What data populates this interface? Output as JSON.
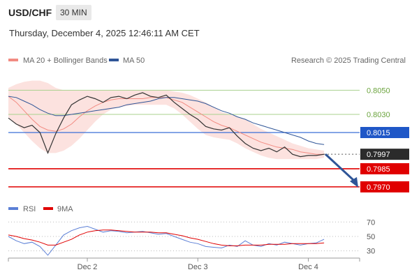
{
  "header": {
    "symbol": "USD/CHF",
    "timeframe": "30 MIN",
    "datetime": "Thursday, December 4, 2025 12:46:11 AM CET"
  },
  "legend": {
    "items": [
      {
        "label": "MA 20 + Bollinger Bands",
        "color": "#f28b82"
      },
      {
        "label": "MA 50",
        "color": "#2f5597"
      }
    ],
    "credit": "Research © 2025 Trading Central"
  },
  "rsi_legend": {
    "items": [
      {
        "label": "RSI",
        "color": "#5b7fd6"
      },
      {
        "label": "9MA",
        "color": "#e00000"
      }
    ]
  },
  "chart_data": [
    {
      "type": "line",
      "panel": "price",
      "x": [
        0,
        2,
        4,
        6,
        8,
        10,
        12,
        14,
        16,
        18,
        20,
        22,
        24,
        26,
        28,
        30,
        32,
        34,
        36,
        38,
        40,
        42,
        44,
        46,
        48,
        50,
        52,
        54,
        56,
        58,
        60,
        62,
        64,
        66,
        68,
        70,
        72,
        74,
        76,
        78,
        80
      ],
      "series": [
        {
          "name": "price",
          "values": [
            0.8027,
            0.8022,
            0.8019,
            0.8021,
            0.8015,
            0.7998,
            0.8014,
            0.8027,
            0.8038,
            0.8042,
            0.8045,
            0.8043,
            0.804,
            0.8044,
            0.8045,
            0.8043,
            0.8046,
            0.8048,
            0.8045,
            0.8044,
            0.8046,
            0.804,
            0.8035,
            0.803,
            0.8026,
            0.802,
            0.8018,
            0.8017,
            0.8019,
            0.8012,
            0.8006,
            0.8002,
            0.8,
            0.8002,
            0.7999,
            0.8003,
            0.7997,
            0.7995,
            0.7996,
            0.7996,
            0.7997
          ]
        },
        {
          "name": "MA 20",
          "values": [
            0.8045,
            0.804,
            0.8033,
            0.8026,
            0.802,
            0.8017,
            0.8016,
            0.8018,
            0.8022,
            0.8028,
            0.8033,
            0.8037,
            0.804,
            0.8042,
            0.8043,
            0.8043,
            0.8043,
            0.8043,
            0.8044,
            0.8044,
            0.8044,
            0.8042,
            0.804,
            0.8036,
            0.8032,
            0.8028,
            0.8024,
            0.8021,
            0.8019,
            0.8016,
            0.8013,
            0.801,
            0.8007,
            0.8005,
            0.8003,
            0.8002,
            0.8001,
            0.7999,
            0.7998,
            0.7997,
            0.7997
          ]
        },
        {
          "name": "MA 50",
          "values": [
            0.8045,
            0.8044,
            0.8041,
            0.8038,
            0.8034,
            0.8031,
            0.8029,
            0.8029,
            0.803,
            0.8031,
            0.8032,
            0.8033,
            0.8034,
            0.8035,
            0.8036,
            0.8038,
            0.8039,
            0.804,
            0.8041,
            0.8043,
            0.8044,
            0.8044,
            0.8043,
            0.8042,
            0.8041,
            0.8039,
            0.8036,
            0.8033,
            0.8031,
            0.8028,
            0.8026,
            0.8023,
            0.8021,
            0.8019,
            0.8017,
            0.8015,
            0.8013,
            0.8011,
            0.8008,
            0.8006,
            0.8005
          ]
        },
        {
          "name": "Bollinger upper",
          "values": [
            0.8052,
            0.8055,
            0.8057,
            0.8058,
            0.8058,
            0.8056,
            0.8052,
            0.805,
            0.805,
            0.805,
            0.805,
            0.805,
            0.805,
            0.805,
            0.805,
            0.805,
            0.805,
            0.805,
            0.805,
            0.805,
            0.805,
            0.8049,
            0.8048,
            0.8046,
            0.8043,
            0.804,
            0.8036,
            0.8032,
            0.803,
            0.8028,
            0.8026,
            0.8022,
            0.8018,
            0.8015,
            0.8012,
            0.8009,
            0.8006,
            0.8004,
            0.8002,
            0.8001,
            0.8
          ]
        },
        {
          "name": "Bollinger lower",
          "values": [
            0.8028,
            0.8022,
            0.8015,
            0.8008,
            0.8002,
            0.7998,
            0.7998,
            0.8,
            0.8004,
            0.801,
            0.8017,
            0.8024,
            0.803,
            0.8034,
            0.8036,
            0.8037,
            0.8038,
            0.8038,
            0.8038,
            0.8038,
            0.8038,
            0.8035,
            0.803,
            0.8024,
            0.8018,
            0.8013,
            0.8011,
            0.801,
            0.8009,
            0.8006,
            0.8002,
            0.7999,
            0.7996,
            0.7994,
            0.7993,
            0.7993,
            0.7993,
            0.7993,
            0.7993,
            0.7993,
            0.7994
          ]
        }
      ],
      "levels": [
        {
          "value": 0.805,
          "label": "0.8050",
          "kind": "resistance"
        },
        {
          "value": 0.803,
          "label": "0.8030",
          "kind": "resistance"
        },
        {
          "value": 0.8015,
          "label": "0.8015",
          "kind": "pivot"
        },
        {
          "value": 0.7997,
          "label": "0.7997",
          "kind": "last"
        },
        {
          "value": 0.7985,
          "label": "0.7985",
          "kind": "support"
        },
        {
          "value": 0.797,
          "label": "0.7970",
          "kind": "support"
        }
      ],
      "forecast_arrow": {
        "from": 0.7997,
        "to": 0.797,
        "direction": "down"
      },
      "xticks": [
        {
          "x": 20,
          "label": "Dec 2"
        },
        {
          "x": 48,
          "label": "Dec 3"
        },
        {
          "x": 76,
          "label": "Dec 4"
        }
      ],
      "ylim": [
        0.7963,
        0.8067
      ],
      "xlim": [
        0,
        89
      ],
      "grid": false
    },
    {
      "type": "line",
      "panel": "rsi",
      "x": [
        0,
        2,
        4,
        6,
        8,
        10,
        12,
        14,
        16,
        18,
        20,
        22,
        24,
        26,
        28,
        30,
        32,
        34,
        36,
        38,
        40,
        42,
        44,
        46,
        48,
        50,
        52,
        54,
        56,
        58,
        60,
        62,
        64,
        66,
        68,
        70,
        72,
        74,
        76,
        78,
        80
      ],
      "series": [
        {
          "name": "RSI",
          "values": [
            50,
            44,
            40,
            42,
            36,
            24,
            38,
            52,
            58,
            62,
            64,
            60,
            56,
            58,
            57,
            55,
            56,
            57,
            55,
            53,
            54,
            50,
            46,
            42,
            40,
            36,
            35,
            34,
            38,
            36,
            44,
            38,
            36,
            40,
            38,
            42,
            40,
            38,
            40,
            41,
            46
          ]
        },
        {
          "name": "9MA",
          "values": [
            52,
            50,
            47,
            45,
            42,
            38,
            38,
            42,
            46,
            52,
            56,
            58,
            59,
            59,
            58,
            57,
            56,
            56,
            56,
            55,
            55,
            53,
            51,
            48,
            46,
            43,
            40,
            38,
            37,
            37,
            38,
            38,
            38,
            39,
            39,
            39,
            40,
            40,
            40,
            40,
            41
          ]
        }
      ],
      "yticks": [
        70,
        50,
        30
      ],
      "ylim": [
        20,
        78
      ]
    }
  ]
}
